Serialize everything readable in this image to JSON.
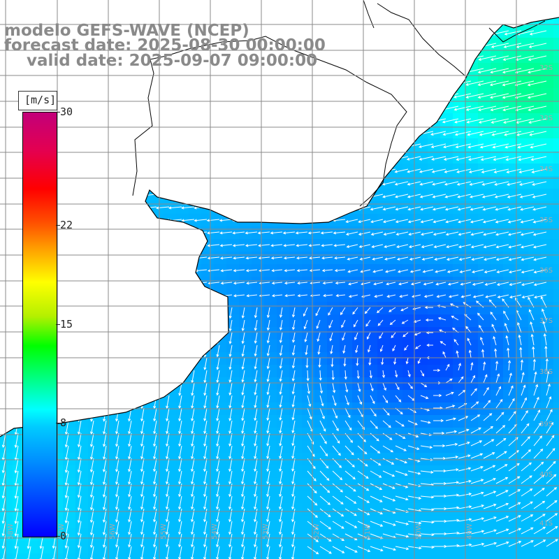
{
  "title": {
    "line1": "modelo GEFS-WAVE (NCEP)",
    "line2": "forecast date: 2025-08-30 00:00:00",
    "line3": "    valid date: 2025-09-07 09:00:00"
  },
  "colorbar": {
    "unit_label": "[m/s]",
    "ticks": [
      {
        "label": "30",
        "value": 30
      },
      {
        "label": "22",
        "value": 22
      },
      {
        "label": "15",
        "value": 15
      },
      {
        "label": "8",
        "value": 8
      },
      {
        "label": "0",
        "value": 0
      }
    ],
    "range": [
      0,
      30
    ],
    "colormap": "blue-cyan-green-yellow-red-magenta"
  },
  "map": {
    "projection": "lat-lon",
    "lon_range": [
      -59,
      -48
    ],
    "lat_range": [
      -42,
      -31
    ],
    "gridlines": true,
    "lat_labels": [
      "32S",
      "33S",
      "34S",
      "35S",
      "36S",
      "37S",
      "38S",
      "39S",
      "40S",
      "41S"
    ],
    "lon_labels": [
      "58W",
      "57W",
      "56W",
      "55W",
      "54W",
      "53W",
      "52W",
      "51W",
      "50W",
      "49W"
    ],
    "land_color": "#ffffff",
    "coast_color": "#000000",
    "grid_color": "#888888",
    "vector_color": "#ffffff",
    "field_description": "wind speed and direction over ocean"
  }
}
